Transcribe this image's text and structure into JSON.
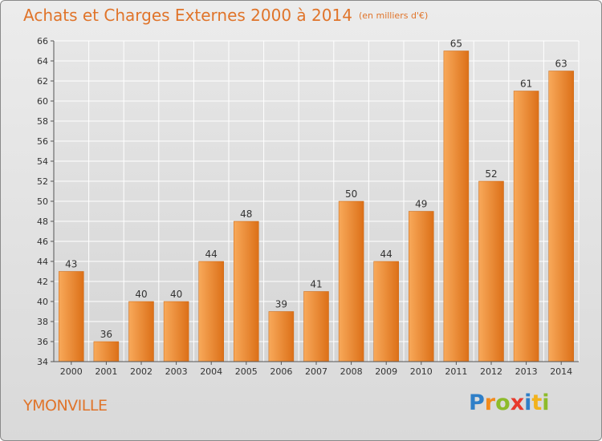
{
  "header": {
    "title": "Achats et Charges Externes 2000 à 2014",
    "subtitle": "(en milliers d'€)"
  },
  "footer": {
    "commune": "YMONVILLE",
    "logo_letters": [
      {
        "char": "P",
        "color": "#2f7fc8"
      },
      {
        "char": "r",
        "color": "#f28a1c"
      },
      {
        "char": "o",
        "color": "#8dbb2a"
      },
      {
        "char": "x",
        "color": "#e8392c"
      },
      {
        "char": "i",
        "color": "#2f7fc8"
      },
      {
        "char": "t",
        "color": "#f2b21c"
      },
      {
        "char": "i",
        "color": "#8dbb2a"
      }
    ]
  },
  "colors": {
    "bar_light": "#f8a95a",
    "bar_dark": "#dc7018",
    "title": "#e0742a",
    "grid": "#ffffff"
  },
  "chart_data": {
    "type": "bar",
    "categories": [
      "2000",
      "2001",
      "2002",
      "2003",
      "2004",
      "2005",
      "2006",
      "2007",
      "2008",
      "2009",
      "2010",
      "2011",
      "2012",
      "2013",
      "2014"
    ],
    "values": [
      43,
      36,
      40,
      40,
      44,
      48,
      39,
      41,
      50,
      44,
      49,
      65,
      52,
      61,
      63
    ],
    "ylim": [
      34,
      66
    ],
    "yticks": [
      34,
      36,
      38,
      40,
      42,
      44,
      46,
      48,
      50,
      52,
      54,
      56,
      58,
      60,
      62,
      64,
      66
    ],
    "grid": true
  }
}
